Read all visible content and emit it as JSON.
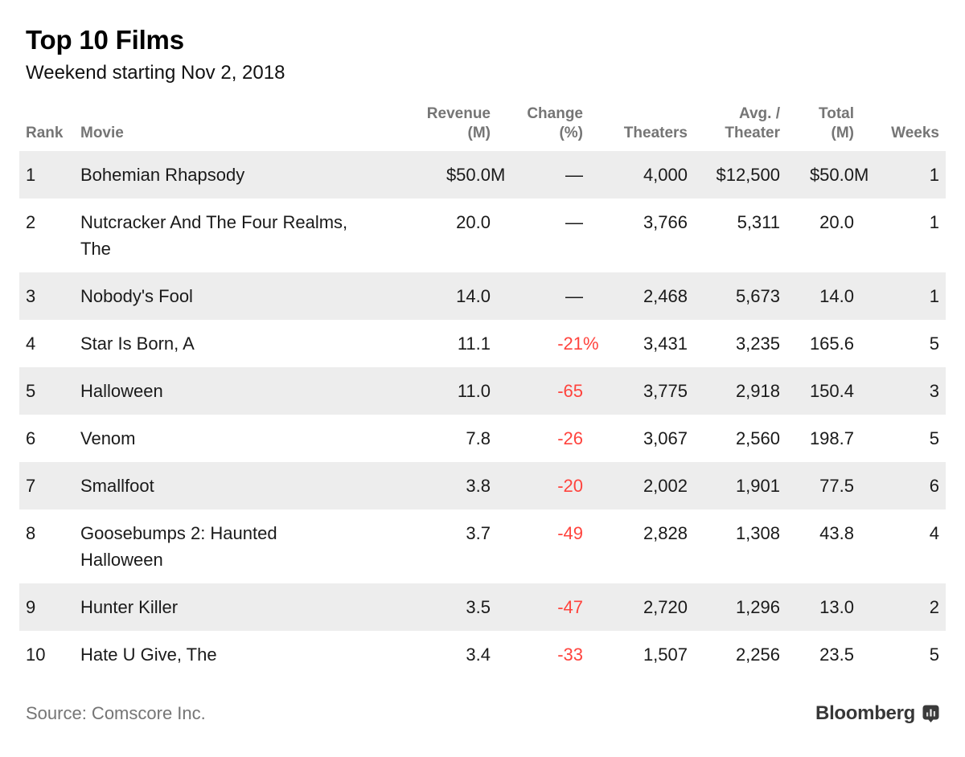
{
  "page": {
    "title": "Top 10 Films",
    "subtitle": "Weekend starting Nov 2, 2018"
  },
  "table": {
    "headers": {
      "rank": "Rank",
      "movie": "Movie",
      "revenue_l1": "Revenue",
      "revenue_l2": "(M)",
      "change_l1": "Change",
      "change_l2": "(%)",
      "theaters": "Theaters",
      "avg_l1": "Avg. /",
      "avg_l2": "Theater",
      "total_l1": "Total",
      "total_l2": "(M)",
      "weeks": "Weeks"
    },
    "rows": [
      {
        "rank": "1",
        "movie": "Bohemian Rhapsody",
        "revenue": "$50.0M",
        "change": "—",
        "theaters": "4,000",
        "avg": "$12,500",
        "total": "$50.0M",
        "weeks": "1"
      },
      {
        "rank": "2",
        "movie": "Nutcracker And The Four Realms, The",
        "revenue": "20.0",
        "change": "—",
        "theaters": "3,766",
        "avg": "5,311",
        "total": "20.0",
        "weeks": "1"
      },
      {
        "rank": "3",
        "movie": "Nobody's Fool",
        "revenue": "14.0",
        "change": "—",
        "theaters": "2,468",
        "avg": "5,673",
        "total": "14.0",
        "weeks": "1"
      },
      {
        "rank": "4",
        "movie": "Star Is Born, A",
        "revenue": "11.1",
        "change": "-21%",
        "theaters": "3,431",
        "avg": "3,235",
        "total": "165.6",
        "weeks": "5"
      },
      {
        "rank": "5",
        "movie": "Halloween",
        "revenue": "11.0",
        "change": "-65",
        "theaters": "3,775",
        "avg": "2,918",
        "total": "150.4",
        "weeks": "3"
      },
      {
        "rank": "6",
        "movie": "Venom",
        "revenue": "7.8",
        "change": "-26",
        "theaters": "3,067",
        "avg": "2,560",
        "total": "198.7",
        "weeks": "5"
      },
      {
        "rank": "7",
        "movie": "Smallfoot",
        "revenue": "3.8",
        "change": "-20",
        "theaters": "2,002",
        "avg": "1,901",
        "total": "77.5",
        "weeks": "6"
      },
      {
        "rank": "8",
        "movie": "Goosebumps 2: Haunted Halloween",
        "revenue": "3.7",
        "change": "-49",
        "theaters": "2,828",
        "avg": "1,308",
        "total": "43.8",
        "weeks": "4"
      },
      {
        "rank": "9",
        "movie": "Hunter Killer",
        "revenue": "3.5",
        "change": "-47",
        "theaters": "2,720",
        "avg": "1,296",
        "total": "13.0",
        "weeks": "2"
      },
      {
        "rank": "10",
        "movie": "Hate U Give, The",
        "revenue": "3.4",
        "change": "-33",
        "theaters": "1,507",
        "avg": "2,256",
        "total": "23.5",
        "weeks": "5"
      }
    ]
  },
  "footer": {
    "source": "Source: Comscore Inc.",
    "brand": "Bloomberg"
  },
  "colors": {
    "negative": "#ff433d",
    "row_shade": "#ededed",
    "muted": "#757575",
    "text": "#1a1a1a",
    "brand": "#373737"
  },
  "chart_data": {
    "type": "table",
    "title": "Top 10 Films",
    "subtitle": "Weekend starting Nov 2, 2018",
    "columns": [
      "Rank",
      "Movie",
      "Revenue (M)",
      "Change (%)",
      "Theaters",
      "Avg. / Theater",
      "Total (M)",
      "Weeks"
    ],
    "rows": [
      [
        1,
        "Bohemian Rhapsody",
        50.0,
        null,
        4000,
        12500,
        50.0,
        1
      ],
      [
        2,
        "Nutcracker And The Four Realms, The",
        20.0,
        null,
        3766,
        5311,
        20.0,
        1
      ],
      [
        3,
        "Nobody's Fool",
        14.0,
        null,
        2468,
        5673,
        14.0,
        1
      ],
      [
        4,
        "Star Is Born, A",
        11.1,
        -21,
        3431,
        3235,
        165.6,
        5
      ],
      [
        5,
        "Halloween",
        11.0,
        -65,
        3775,
        2918,
        150.4,
        3
      ],
      [
        6,
        "Venom",
        7.8,
        -26,
        3067,
        2560,
        198.7,
        5
      ],
      [
        7,
        "Smallfoot",
        3.8,
        -20,
        2002,
        1901,
        77.5,
        6
      ],
      [
        8,
        "Goosebumps 2: Haunted Halloween",
        3.7,
        -49,
        2828,
        1308,
        43.8,
        4
      ],
      [
        9,
        "Hunter Killer",
        3.5,
        -47,
        2720,
        1296,
        13.0,
        2
      ],
      [
        10,
        "Hate U Give, The",
        3.4,
        -33,
        1507,
        2256,
        23.5,
        5
      ]
    ],
    "source": "Comscore Inc."
  }
}
